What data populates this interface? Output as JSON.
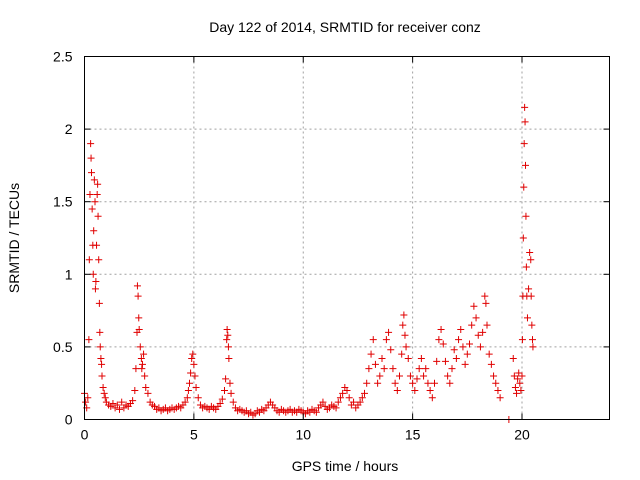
{
  "chart_data": {
    "type": "scatter",
    "title": "Day 122 of 2014, SRMTID for receiver conz",
    "xlabel": "GPS time / hours",
    "ylabel": "SRMTID / TECUs",
    "xlim": [
      0,
      24
    ],
    "ylim": [
      0,
      2.5
    ],
    "xticks": [
      0,
      5,
      10,
      15,
      20
    ],
    "yticks": [
      0,
      0.5,
      1,
      1.5,
      2,
      2.5
    ],
    "xtick_labels": [
      "0",
      "5",
      "10",
      "15",
      "20"
    ],
    "ytick_labels": [
      "0",
      "0.5",
      "1",
      "1.5",
      "2",
      "2.5"
    ],
    "grid": true,
    "marker": "+",
    "color": "#e00000",
    "series": [
      {
        "name": "conz",
        "points": [
          [
            0.0,
            0.18
          ],
          [
            0.05,
            0.12
          ],
          [
            0.1,
            0.08
          ],
          [
            0.15,
            0.15
          ],
          [
            0.2,
            0.55
          ],
          [
            0.22,
            1.1
          ],
          [
            0.25,
            1.55
          ],
          [
            0.28,
            1.9
          ],
          [
            0.3,
            1.8
          ],
          [
            0.32,
            1.7
          ],
          [
            0.35,
            1.45
          ],
          [
            0.38,
            1.2
          ],
          [
            0.4,
            1.0
          ],
          [
            0.42,
            1.3
          ],
          [
            0.45,
            1.65
          ],
          [
            0.48,
            1.5
          ],
          [
            0.5,
            0.9
          ],
          [
            0.52,
            0.95
          ],
          [
            0.55,
            1.2
          ],
          [
            0.58,
            1.55
          ],
          [
            0.6,
            1.62
          ],
          [
            0.62,
            1.4
          ],
          [
            0.65,
            1.1
          ],
          [
            0.68,
            0.8
          ],
          [
            0.7,
            0.6
          ],
          [
            0.72,
            0.5
          ],
          [
            0.75,
            0.42
          ],
          [
            0.78,
            0.38
          ],
          [
            0.8,
            0.3
          ],
          [
            0.85,
            0.22
          ],
          [
            0.9,
            0.18
          ],
          [
            0.95,
            0.15
          ],
          [
            1.0,
            0.12
          ],
          [
            1.1,
            0.1
          ],
          [
            1.2,
            0.09
          ],
          [
            1.3,
            0.11
          ],
          [
            1.4,
            0.08
          ],
          [
            1.5,
            0.1
          ],
          [
            1.6,
            0.07
          ],
          [
            1.7,
            0.12
          ],
          [
            1.8,
            0.08
          ],
          [
            1.9,
            0.1
          ],
          [
            2.0,
            0.09
          ],
          [
            2.1,
            0.11
          ],
          [
            2.2,
            0.13
          ],
          [
            2.3,
            0.2
          ],
          [
            2.35,
            0.35
          ],
          [
            2.4,
            0.6
          ],
          [
            2.42,
            0.92
          ],
          [
            2.45,
            0.85
          ],
          [
            2.48,
            0.7
          ],
          [
            2.5,
            0.62
          ],
          [
            2.55,
            0.5
          ],
          [
            2.6,
            0.42
          ],
          [
            2.62,
            0.35
          ],
          [
            2.65,
            0.38
          ],
          [
            2.7,
            0.45
          ],
          [
            2.75,
            0.3
          ],
          [
            2.8,
            0.22
          ],
          [
            2.9,
            0.18
          ],
          [
            3.0,
            0.12
          ],
          [
            3.1,
            0.1
          ],
          [
            3.2,
            0.09
          ],
          [
            3.3,
            0.07
          ],
          [
            3.4,
            0.08
          ],
          [
            3.5,
            0.06
          ],
          [
            3.6,
            0.07
          ],
          [
            3.7,
            0.08
          ],
          [
            3.8,
            0.06
          ],
          [
            3.9,
            0.07
          ],
          [
            4.0,
            0.08
          ],
          [
            4.1,
            0.07
          ],
          [
            4.2,
            0.08
          ],
          [
            4.3,
            0.09
          ],
          [
            4.4,
            0.08
          ],
          [
            4.5,
            0.1
          ],
          [
            4.6,
            0.12
          ],
          [
            4.7,
            0.15
          ],
          [
            4.75,
            0.2
          ],
          [
            4.8,
            0.25
          ],
          [
            4.85,
            0.32
          ],
          [
            4.9,
            0.42
          ],
          [
            4.95,
            0.45
          ],
          [
            5.0,
            0.38
          ],
          [
            5.05,
            0.3
          ],
          [
            5.1,
            0.22
          ],
          [
            5.2,
            0.15
          ],
          [
            5.3,
            0.1
          ],
          [
            5.4,
            0.08
          ],
          [
            5.5,
            0.09
          ],
          [
            5.6,
            0.08
          ],
          [
            5.7,
            0.07
          ],
          [
            5.8,
            0.09
          ],
          [
            5.9,
            0.08
          ],
          [
            6.0,
            0.07
          ],
          [
            6.1,
            0.09
          ],
          [
            6.2,
            0.11
          ],
          [
            6.3,
            0.14
          ],
          [
            6.4,
            0.2
          ],
          [
            6.45,
            0.28
          ],
          [
            6.5,
            0.55
          ],
          [
            6.52,
            0.62
          ],
          [
            6.55,
            0.58
          ],
          [
            6.58,
            0.5
          ],
          [
            6.6,
            0.42
          ],
          [
            6.65,
            0.25
          ],
          [
            6.7,
            0.18
          ],
          [
            6.8,
            0.12
          ],
          [
            6.9,
            0.08
          ],
          [
            7.0,
            0.06
          ],
          [
            7.1,
            0.07
          ],
          [
            7.2,
            0.06
          ],
          [
            7.3,
            0.05
          ],
          [
            7.4,
            0.06
          ],
          [
            7.5,
            0.04
          ],
          [
            7.6,
            0.05
          ],
          [
            7.7,
            0.03
          ],
          [
            7.8,
            0.04
          ],
          [
            7.9,
            0.06
          ],
          [
            8.0,
            0.05
          ],
          [
            8.1,
            0.07
          ],
          [
            8.2,
            0.06
          ],
          [
            8.3,
            0.08
          ],
          [
            8.4,
            0.1
          ],
          [
            8.5,
            0.12
          ],
          [
            8.6,
            0.1
          ],
          [
            8.7,
            0.08
          ],
          [
            8.8,
            0.06
          ],
          [
            8.9,
            0.05
          ],
          [
            9.0,
            0.07
          ],
          [
            9.1,
            0.06
          ],
          [
            9.2,
            0.05
          ],
          [
            9.3,
            0.06
          ],
          [
            9.4,
            0.07
          ],
          [
            9.5,
            0.05
          ],
          [
            9.6,
            0.06
          ],
          [
            9.7,
            0.05
          ],
          [
            9.8,
            0.07
          ],
          [
            9.9,
            0.06
          ],
          [
            10.0,
            0.05
          ],
          [
            10.1,
            0.04
          ],
          [
            10.2,
            0.06
          ],
          [
            10.3,
            0.05
          ],
          [
            10.4,
            0.07
          ],
          [
            10.5,
            0.06
          ],
          [
            10.6,
            0.05
          ],
          [
            10.7,
            0.08
          ],
          [
            10.8,
            0.1
          ],
          [
            10.9,
            0.12
          ],
          [
            11.0,
            0.09
          ],
          [
            11.1,
            0.07
          ],
          [
            11.2,
            0.08
          ],
          [
            11.3,
            0.1
          ],
          [
            11.4,
            0.09
          ],
          [
            11.5,
            0.08
          ],
          [
            11.6,
            0.12
          ],
          [
            11.7,
            0.15
          ],
          [
            11.8,
            0.18
          ],
          [
            11.9,
            0.22
          ],
          [
            12.0,
            0.2
          ],
          [
            12.1,
            0.15
          ],
          [
            12.2,
            0.1
          ],
          [
            12.3,
            0.12
          ],
          [
            12.4,
            0.08
          ],
          [
            12.5,
            0.1
          ],
          [
            12.6,
            0.12
          ],
          [
            12.7,
            0.15
          ],
          [
            12.8,
            0.18
          ],
          [
            12.9,
            0.25
          ],
          [
            13.0,
            0.35
          ],
          [
            13.1,
            0.45
          ],
          [
            13.2,
            0.55
          ],
          [
            13.3,
            0.38
          ],
          [
            13.4,
            0.25
          ],
          [
            13.5,
            0.3
          ],
          [
            13.6,
            0.42
          ],
          [
            13.7,
            0.35
          ],
          [
            13.8,
            0.55
          ],
          [
            13.9,
            0.6
          ],
          [
            14.0,
            0.48
          ],
          [
            14.1,
            0.35
          ],
          [
            14.2,
            0.25
          ],
          [
            14.3,
            0.2
          ],
          [
            14.4,
            0.3
          ],
          [
            14.5,
            0.45
          ],
          [
            14.55,
            0.65
          ],
          [
            14.6,
            0.72
          ],
          [
            14.65,
            0.58
          ],
          [
            14.7,
            0.5
          ],
          [
            14.8,
            0.42
          ],
          [
            14.9,
            0.3
          ],
          [
            15.0,
            0.25
          ],
          [
            15.1,
            0.2
          ],
          [
            15.2,
            0.28
          ],
          [
            15.3,
            0.35
          ],
          [
            15.4,
            0.42
          ],
          [
            15.5,
            0.3
          ],
          [
            15.6,
            0.35
          ],
          [
            15.7,
            0.25
          ],
          [
            15.8,
            0.2
          ],
          [
            15.9,
            0.15
          ],
          [
            16.0,
            0.25
          ],
          [
            16.1,
            0.4
          ],
          [
            16.2,
            0.55
          ],
          [
            16.3,
            0.62
          ],
          [
            16.4,
            0.52
          ],
          [
            16.5,
            0.4
          ],
          [
            16.6,
            0.3
          ],
          [
            16.7,
            0.25
          ],
          [
            16.8,
            0.35
          ],
          [
            16.9,
            0.48
          ],
          [
            17.0,
            0.42
          ],
          [
            17.1,
            0.55
          ],
          [
            17.2,
            0.62
          ],
          [
            17.3,
            0.5
          ],
          [
            17.4,
            0.38
          ],
          [
            17.5,
            0.45
          ],
          [
            17.6,
            0.52
          ],
          [
            17.7,
            0.65
          ],
          [
            17.8,
            0.78
          ],
          [
            17.9,
            0.7
          ],
          [
            18.0,
            0.58
          ],
          [
            18.1,
            0.5
          ],
          [
            18.2,
            0.6
          ],
          [
            18.3,
            0.85
          ],
          [
            18.35,
            0.8
          ],
          [
            18.4,
            0.65
          ],
          [
            18.5,
            0.45
          ],
          [
            18.6,
            0.38
          ],
          [
            18.7,
            0.3
          ],
          [
            18.8,
            0.25
          ],
          [
            18.9,
            0.2
          ],
          [
            19.0,
            0.15
          ],
          [
            19.4,
            0.0
          ],
          [
            19.6,
            0.42
          ],
          [
            19.65,
            0.3
          ],
          [
            19.7,
            0.22
          ],
          [
            19.75,
            0.18
          ],
          [
            19.8,
            0.28
          ],
          [
            19.85,
            0.32
          ],
          [
            19.9,
            0.25
          ],
          [
            19.95,
            0.2
          ],
          [
            20.0,
            0.3
          ],
          [
            20.02,
            0.55
          ],
          [
            20.04,
            0.85
          ],
          [
            20.06,
            1.25
          ],
          [
            20.08,
            1.6
          ],
          [
            20.1,
            1.9
          ],
          [
            20.12,
            2.15
          ],
          [
            20.14,
            2.05
          ],
          [
            20.16,
            1.75
          ],
          [
            20.18,
            1.4
          ],
          [
            20.2,
            1.05
          ],
          [
            20.22,
            0.85
          ],
          [
            20.25,
            0.7
          ],
          [
            20.3,
            0.9
          ],
          [
            20.35,
            1.15
          ],
          [
            20.4,
            1.1
          ],
          [
            20.42,
            0.85
          ],
          [
            20.45,
            0.65
          ],
          [
            20.48,
            0.55
          ],
          [
            20.5,
            0.5
          ]
        ]
      }
    ]
  }
}
